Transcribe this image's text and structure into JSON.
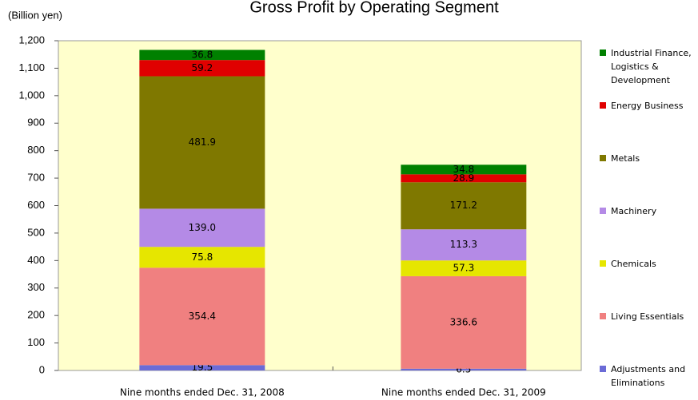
{
  "chart_data": {
    "type": "stacked_bar",
    "title": "Gross Profit by Operating Segment",
    "y_label": "(Billion yen)",
    "categories": [
      "Nine months ended Dec. 31, 2008",
      "Nine months ended Dec. 31, 2009"
    ],
    "series": [
      {
        "name": "Adjustments and Eliminations",
        "color": "#6b6bd6",
        "values": [
          19.5,
          6.5
        ],
        "value_labels": [
          "19.5",
          "6.5"
        ]
      },
      {
        "name": "Living Essentials",
        "color": "#f08080",
        "values": [
          354.4,
          336.6
        ],
        "value_labels": [
          "354.4",
          "336.6"
        ]
      },
      {
        "name": "Chemicals",
        "color": "#e6e600",
        "values": [
          75.8,
          57.3
        ],
        "value_labels": [
          "75.8",
          "57.3"
        ]
      },
      {
        "name": "Machinery",
        "color": "#b48ae6",
        "values": [
          139.0,
          113.3
        ],
        "value_labels": [
          "139.0",
          "113.3"
        ]
      },
      {
        "name": "Metals",
        "color": "#7f7800",
        "values": [
          481.9,
          171.2
        ],
        "value_labels": [
          "481.9",
          "171.2"
        ]
      },
      {
        "name": "Energy Business",
        "color": "#e00000",
        "values": [
          59.2,
          28.9
        ],
        "value_labels": [
          "59.2",
          "28.9"
        ]
      },
      {
        "name": "Industrial Finance, Logistics & Development",
        "color": "#008000",
        "values": [
          36.8,
          34.8
        ],
        "value_labels": [
          "36.8",
          "34.8"
        ]
      }
    ],
    "ylim": [
      0,
      1200
    ],
    "yticks": [
      0,
      100,
      200,
      300,
      400,
      500,
      600,
      700,
      800,
      900,
      {
        "value": 1000,
        "label": "1,000"
      },
      {
        "value": 1100,
        "label": "1,100"
      },
      {
        "value": 1200,
        "label": "1,200"
      }
    ],
    "grid": false,
    "legend": "right",
    "plot_background": "#ffffcc"
  }
}
